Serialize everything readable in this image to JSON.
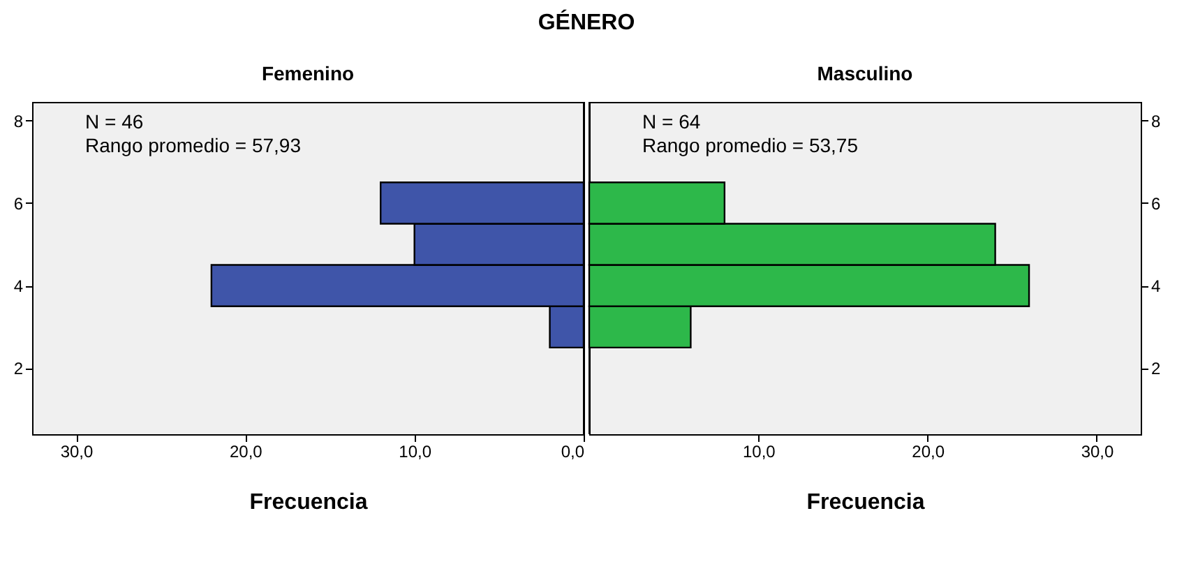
{
  "chart_data": [
    {
      "type": "histogram",
      "title": "GÉNERO",
      "subtitle": "Femenino",
      "xlabel": "Frecuencia",
      "orientation": "horizontal",
      "bins": [
        2.5,
        3.5,
        4.5,
        5.5,
        6.5
      ],
      "values": [
        2,
        22,
        10,
        12
      ],
      "color": "#3f55a9",
      "xlim": [
        32.6,
        0
      ],
      "xticks": [
        {
          "value": 30,
          "label": "30,0"
        },
        {
          "value": 20,
          "label": "20,0"
        },
        {
          "value": 10,
          "label": "10,0"
        },
        {
          "value": 0,
          "label": "0,0"
        }
      ],
      "ylim": [
        0.4,
        8.45
      ],
      "yticks": [
        2,
        4,
        6,
        8
      ],
      "annotations": [
        "N = 46",
        "Rango promedio = 57,93"
      ],
      "grid": false
    },
    {
      "type": "histogram",
      "subtitle": "Masculino",
      "xlabel": "Frecuencia",
      "orientation": "horizontal",
      "bins": [
        2.5,
        3.5,
        4.5,
        5.5,
        6.5
      ],
      "values": [
        6,
        26,
        24,
        8
      ],
      "color": "#2db84a",
      "xlim": [
        0,
        32.6
      ],
      "xticks": [
        {
          "value": 10,
          "label": "10,0"
        },
        {
          "value": 20,
          "label": "20,0"
        },
        {
          "value": 30,
          "label": "30,0"
        }
      ],
      "ylim": [
        0.4,
        8.45
      ],
      "yticks": [
        2,
        4,
        6,
        8
      ],
      "annotations": [
        "N = 64",
        "Rango promedio = 53,75"
      ],
      "grid": false
    }
  ]
}
